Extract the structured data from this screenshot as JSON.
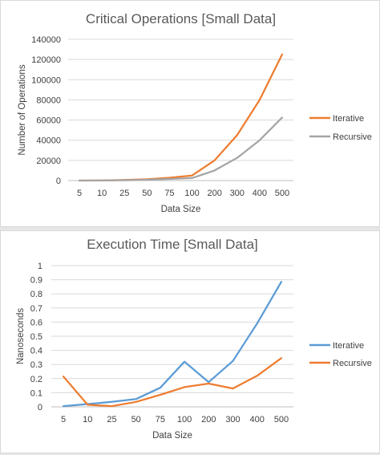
{
  "charts": [
    {
      "type": "line",
      "title": "Critical Operations [Small Data]",
      "xlabel": "Data Size",
      "ylabel": "Number of Operations",
      "categories": [
        "5",
        "10",
        "25",
        "50",
        "75",
        "100",
        "200",
        "300",
        "400",
        "500"
      ],
      "ylim": [
        0,
        140000
      ],
      "yticks": [
        0,
        20000,
        40000,
        60000,
        80000,
        100000,
        120000,
        140000
      ],
      "ytick_labels": [
        "0",
        "20000",
        "40000",
        "60000",
        "80000",
        "100000",
        "120000",
        "140000"
      ],
      "grid": true,
      "legend": "right",
      "series": [
        {
          "name": "Iterative",
          "color": "#ed7d31",
          "values": [
            25,
            100,
            625,
            1250,
            2800,
            5000,
            20000,
            45000,
            80000,
            125000
          ]
        },
        {
          "name": "Recursive",
          "color": "#a5a5a5",
          "values": [
            15,
            60,
            300,
            800,
            1600,
            2500,
            10000,
            22500,
            40000,
            62500
          ]
        }
      ]
    },
    {
      "type": "line",
      "title": "Execution Time [Small Data]",
      "xlabel": "Data Size",
      "ylabel": "Nanoseconds",
      "categories": [
        "5",
        "10",
        "25",
        "50",
        "75",
        "100",
        "200",
        "300",
        "400",
        "500"
      ],
      "ylim": [
        0,
        1
      ],
      "yticks": [
        0,
        0.1,
        0.2,
        0.3,
        0.4,
        0.5,
        0.6,
        0.7,
        0.8,
        0.9,
        1
      ],
      "ytick_labels": [
        "0",
        "0.1",
        "0.2",
        "0.3",
        "0.4",
        "0.5",
        "0.6",
        "0.7",
        "0.8",
        "0.9",
        "1"
      ],
      "grid": true,
      "legend": "right",
      "series": [
        {
          "name": "Iterative",
          "color": "#5b9bd5",
          "values": [
            0.005,
            0.02,
            0.035,
            0.055,
            0.135,
            0.32,
            0.175,
            0.325,
            0.59,
            0.885
          ]
        },
        {
          "name": "Recursive",
          "color": "#ed7d31",
          "values": [
            0.215,
            0.015,
            0.005,
            0.035,
            0.085,
            0.14,
            0.165,
            0.13,
            0.22,
            0.345
          ]
        }
      ]
    }
  ]
}
